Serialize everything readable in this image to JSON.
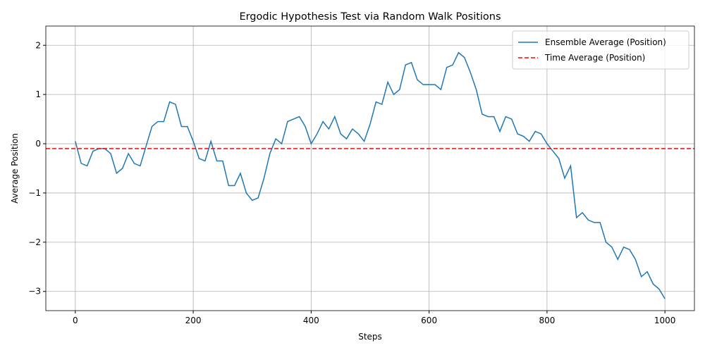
{
  "chart_data": {
    "type": "line",
    "title": "Ergodic Hypothesis Test via Random Walk Positions",
    "xlabel": "Steps",
    "ylabel": "Average Position",
    "x": [
      0,
      10,
      20,
      30,
      40,
      50,
      60,
      70,
      80,
      90,
      100,
      110,
      120,
      130,
      140,
      150,
      160,
      170,
      180,
      190,
      200,
      210,
      220,
      230,
      240,
      250,
      260,
      270,
      280,
      290,
      300,
      310,
      320,
      330,
      340,
      350,
      360,
      370,
      380,
      390,
      400,
      410,
      420,
      430,
      440,
      450,
      460,
      470,
      480,
      490,
      500,
      510,
      520,
      530,
      540,
      550,
      560,
      570,
      580,
      590,
      600,
      610,
      620,
      630,
      640,
      650,
      660,
      670,
      680,
      690,
      700,
      710,
      720,
      730,
      740,
      750,
      760,
      770,
      780,
      790,
      800,
      810,
      820,
      830,
      840,
      850,
      860,
      870,
      880,
      890,
      900,
      910,
      920,
      930,
      940,
      950,
      960,
      970,
      980,
      990,
      1000
    ],
    "series": [
      {
        "name": "Ensemble Average (Position)",
        "color": "#1f77b4",
        "values": [
          0.05,
          -0.4,
          -0.45,
          -0.15,
          -0.1,
          -0.1,
          -0.2,
          -0.6,
          -0.5,
          -0.2,
          -0.4,
          -0.45,
          -0.05,
          0.35,
          0.45,
          0.45,
          0.85,
          0.8,
          0.35,
          0.35,
          0.05,
          -0.3,
          -0.35,
          0.05,
          -0.35,
          -0.35,
          -0.85,
          -0.85,
          -0.6,
          -1.0,
          -1.15,
          -1.1,
          -0.7,
          -0.2,
          0.1,
          0.0,
          0.45,
          0.5,
          0.55,
          0.35,
          0.0,
          0.2,
          0.45,
          0.3,
          0.55,
          0.2,
          0.1,
          0.3,
          0.2,
          0.05,
          0.4,
          0.85,
          0.8,
          1.25,
          1.0,
          1.1,
          1.6,
          1.65,
          1.3,
          1.2,
          1.2,
          1.2,
          1.1,
          1.55,
          1.6,
          1.85,
          1.75,
          1.45,
          1.1,
          0.6,
          0.55,
          0.55,
          0.25,
          0.55,
          0.5,
          0.2,
          0.15,
          0.05,
          0.25,
          0.2,
          0.0,
          -0.15,
          -0.3,
          -0.7,
          -0.45,
          -1.5,
          -1.4,
          -1.55,
          -1.6,
          -1.6,
          -2.0,
          -2.1,
          -2.35,
          -2.1,
          -2.15,
          -2.35,
          -2.7,
          -2.6,
          -2.85,
          -2.95,
          -3.15
        ]
      }
    ],
    "hlines": [
      {
        "name": "Time Average (Position)",
        "color": "red",
        "value": -0.1,
        "dashed": true
      }
    ],
    "xlim": [
      -50,
      1050
    ],
    "ylim": [
      -3.39,
      2.39
    ],
    "xticks": [
      0,
      200,
      400,
      600,
      800,
      1000
    ],
    "yticks": [
      {
        "value": -3,
        "label": "−3"
      },
      {
        "value": -2,
        "label": "−2"
      },
      {
        "value": -1,
        "label": "−1"
      },
      0,
      1,
      2
    ],
    "grid": true,
    "legend": "upper right"
  }
}
